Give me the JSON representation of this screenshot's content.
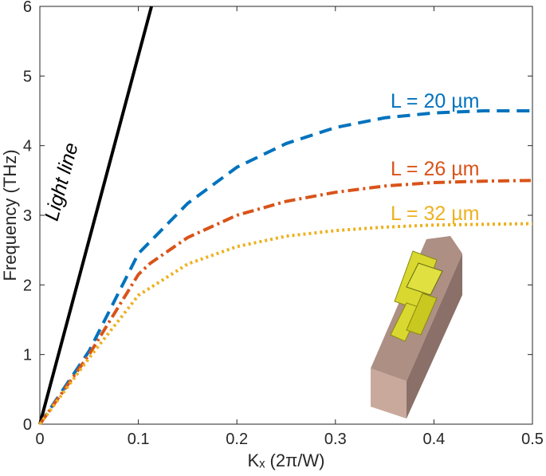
{
  "chart_data": {
    "type": "line",
    "xlabel": "Kₓ (2π/W)",
    "ylabel": "Frequency (THz)",
    "xlim": [
      0,
      0.5
    ],
    "ylim": [
      0,
      6
    ],
    "xticks": [
      0,
      0.1,
      0.2,
      0.3,
      0.4,
      0.5
    ],
    "yticks": [
      0,
      1,
      2,
      3,
      4,
      5,
      6
    ],
    "series": [
      {
        "name": "Light line",
        "color": "#000000",
        "style": "solid",
        "x": [
          0,
          0.1133
        ],
        "values": [
          0,
          6
        ]
      },
      {
        "name": "L = 20 µm",
        "color": "#0072bd",
        "style": "dashed",
        "x": [
          0,
          0.05,
          0.1,
          0.15,
          0.2,
          0.25,
          0.3,
          0.35,
          0.4,
          0.45,
          0.5
        ],
        "values": [
          0,
          1.05,
          2.45,
          3.17,
          3.69,
          4.03,
          4.26,
          4.4,
          4.47,
          4.5,
          4.5
        ]
      },
      {
        "name": "L = 26 µm",
        "color": "#d95319",
        "style": "dash-dot",
        "x": [
          0,
          0.05,
          0.1,
          0.112,
          0.15,
          0.2,
          0.25,
          0.3,
          0.35,
          0.4,
          0.45,
          0.5
        ],
        "values": [
          0,
          1.0,
          2.15,
          2.31,
          2.68,
          3.0,
          3.2,
          3.33,
          3.42,
          3.47,
          3.49,
          3.5
        ]
      },
      {
        "name": "L = 32 µm",
        "color": "#edb120",
        "style": "dotted",
        "x": [
          0,
          0.05,
          0.1,
          0.15,
          0.2,
          0.25,
          0.3,
          0.35,
          0.4,
          0.45,
          0.5
        ],
        "values": [
          0,
          0.95,
          1.85,
          2.3,
          2.55,
          2.7,
          2.78,
          2.83,
          2.86,
          2.87,
          2.88
        ]
      }
    ]
  }
}
